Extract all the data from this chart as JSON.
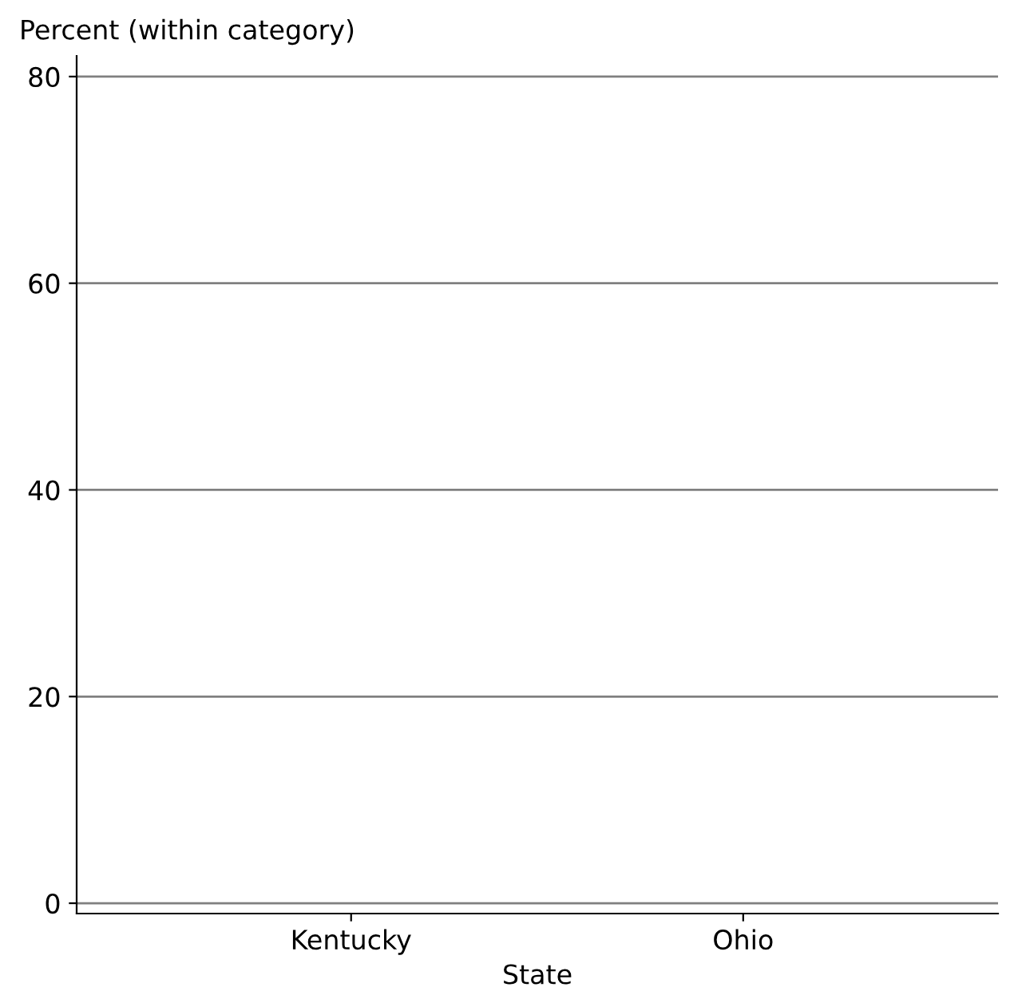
{
  "chart_data": {
    "type": "bar",
    "xlabel": "State",
    "ylabel": "Percent (within category)",
    "categories": [
      "Kentucky",
      "Ohio"
    ],
    "values": [
      null,
      null
    ],
    "ylim": [
      -1,
      82
    ],
    "yticks": [
      0,
      20,
      40,
      60,
      80
    ],
    "grid": "y",
    "legend": false
  }
}
